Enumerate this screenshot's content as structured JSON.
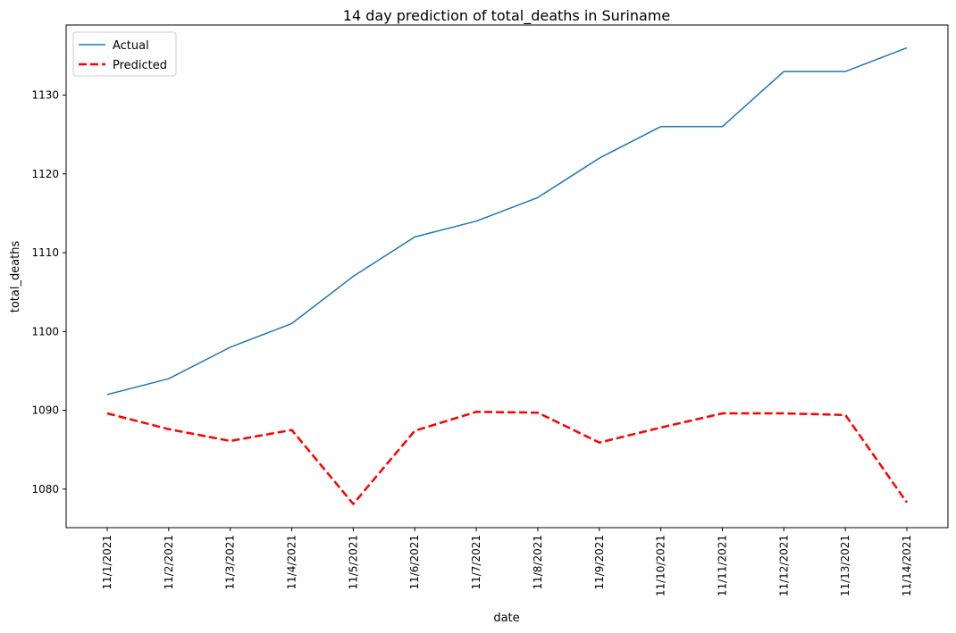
{
  "chart_data": {
    "type": "line",
    "title": "14 day prediction of total_deaths in Suriname",
    "xlabel": "date",
    "ylabel": "total_deaths",
    "categories": [
      "11/1/2021",
      "11/2/2021",
      "11/3/2021",
      "11/4/2021",
      "11/5/2021",
      "11/6/2021",
      "11/7/2021",
      "11/8/2021",
      "11/9/2021",
      "11/10/2021",
      "11/11/2021",
      "11/12/2021",
      "11/13/2021",
      "11/14/2021"
    ],
    "yticks": [
      1080,
      1090,
      1100,
      1110,
      1120,
      1130
    ],
    "ylim": [
      1075.1,
      1138.9
    ],
    "grid": false,
    "legend": "upper-left",
    "series": [
      {
        "name": "Actual",
        "color": "#1f77b4",
        "style": "solid",
        "values": [
          1092,
          1094,
          1098,
          1101,
          1107,
          1112,
          1114,
          1117,
          1122,
          1126,
          1126,
          1133,
          1133,
          1136
        ]
      },
      {
        "name": "Predicted",
        "color": "#ff0000",
        "style": "dashed",
        "values": [
          1089.6,
          1087.6,
          1086.1,
          1087.5,
          1078.1,
          1087.4,
          1089.8,
          1089.7,
          1085.9,
          1087.8,
          1089.6,
          1089.6,
          1089.4,
          1078.3
        ]
      }
    ]
  }
}
